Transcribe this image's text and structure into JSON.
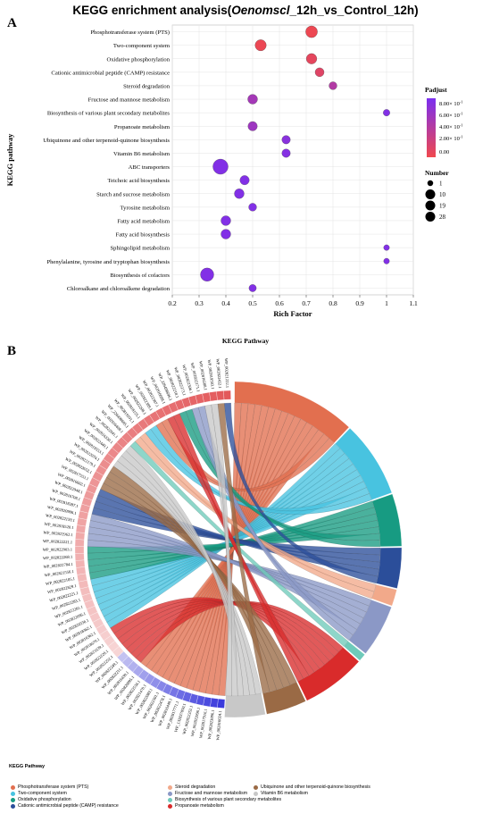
{
  "panel_a": {
    "letter": "A",
    "title_prefix": "KEGG enrichment analysis(",
    "title_italic": "Oenomscl",
    "title_suffix": "_12h_vs_Control_12h)"
  },
  "panel_b": {
    "letter": "B",
    "title": "KEGG Pathway"
  },
  "colors": {
    "padjust_low": "#f0484e",
    "padjust_high": "#7b2ff0"
  },
  "chart_data": [
    {
      "type": "scatter",
      "title": "KEGG enrichment analysis(Oenomscl_12h_vs_Control_12h)",
      "xlabel": "Rich Factor",
      "ylabel": "KEGG pathway",
      "xlim": [
        0.2,
        1.1
      ],
      "x_ticks": [
        "0.2",
        "0.3",
        "0.4",
        "0.5",
        "0.6",
        "0.7",
        "0.8",
        "0.9",
        "1",
        "1.1"
      ],
      "grid": true,
      "legend_placement": "right",
      "size_legend_title": "Number",
      "size_legend": [
        1,
        10,
        19,
        28
      ],
      "color_legend_title": "Padjust",
      "color_legend_ticks": [
        "8.00e-01",
        "6.00e-01",
        "4.00e-01",
        "2.00e-01",
        "0.00"
      ],
      "color_ticks_mantissa": [
        "8.00× 10",
        "6.00× 10",
        "4.00× 10",
        "2.00× 10"
      ],
      "color_ticks_exp": "-1",
      "color_tick_zero": "0.00",
      "pathways": [
        {
          "name": "Phosphotransferase system (PTS)",
          "x": 0.72,
          "number": 14,
          "padjust": 0.02
        },
        {
          "name": "Two-component system",
          "x": 0.53,
          "number": 12,
          "padjust": 0.03
        },
        {
          "name": "Oxidative phosphorylation",
          "x": 0.72,
          "number": 10,
          "padjust": 0.08
        },
        {
          "name": "Cationic antimicrobial peptide (CAMP) resistance",
          "x": 0.75,
          "number": 6,
          "padjust": 0.12
        },
        {
          "name": "Steroid degradation",
          "x": 0.8,
          "number": 4,
          "padjust": 0.45
        },
        {
          "name": "Fructose and mannose metabolism",
          "x": 0.5,
          "number": 8,
          "padjust": 0.55
        },
        {
          "name": "Biosynthesis of various plant secondary metabolites",
          "x": 1.0,
          "number": 2,
          "padjust": 0.8
        },
        {
          "name": "Propanoate metabolism",
          "x": 0.5,
          "number": 7,
          "padjust": 0.6
        },
        {
          "name": "Ubiquinone and other terpenoid-quinone biosynthesis",
          "x": 0.625,
          "number": 5,
          "padjust": 0.75
        },
        {
          "name": "Vitamin B6 metabolism",
          "x": 0.625,
          "number": 5,
          "padjust": 0.78
        },
        {
          "name": "ABC transporters",
          "x": 0.38,
          "number": 28,
          "padjust": 0.8
        },
        {
          "name": "Teichoic acid biosynthesis",
          "x": 0.47,
          "number": 7,
          "padjust": 0.8
        },
        {
          "name": "Starch and sucrose metabolism",
          "x": 0.45,
          "number": 8,
          "padjust": 0.8
        },
        {
          "name": "Tyrosine metabolism",
          "x": 0.5,
          "number": 4,
          "padjust": 0.8
        },
        {
          "name": "Fatty acid metabolism",
          "x": 0.4,
          "number": 8,
          "padjust": 0.8
        },
        {
          "name": "Fatty acid biosynthesis",
          "x": 0.4,
          "number": 8,
          "padjust": 0.8
        },
        {
          "name": "Sphingolipid metabolism",
          "x": 1.0,
          "number": 1,
          "padjust": 0.8
        },
        {
          "name": "Phenylalanine, tyrosine and tryptophan biosynthesis",
          "x": 1.0,
          "number": 1,
          "padjust": 0.8
        },
        {
          "name": "Biosynthesis of cofactors",
          "x": 0.33,
          "number": 20,
          "padjust": 0.8
        },
        {
          "name": "Chloroalkane and chloroalkene degradation",
          "x": 0.5,
          "number": 3,
          "padjust": 0.8
        }
      ]
    },
    {
      "type": "chord",
      "title": "KEGG Pathway",
      "legend_title": "KEGG Pathway",
      "log2fc_title": "Log2FC",
      "log2fc_ticks": [
        "-1",
        "-0.5",
        "0",
        "0.5",
        "1",
        "1.5"
      ],
      "pathways": [
        {
          "name": "Phosphotransferase system (PTS)",
          "color": "#e26f4f",
          "span": 0.21
        },
        {
          "name": "Two-component system",
          "color": "#48c3e0",
          "span": 0.13
        },
        {
          "name": "Oxidative phosphorylation",
          "color": "#179b82",
          "span": 0.09
        },
        {
          "name": "Cationic antimicrobial peptide (CAMP) resistance",
          "color": "#2b4e9a",
          "span": 0.07
        },
        {
          "name": "Steroid degradation",
          "color": "#f2a98a",
          "span": 0.03
        },
        {
          "name": "Fructose and mannose metabolism",
          "color": "#8b98c6",
          "span": 0.09
        },
        {
          "name": "Biosynthesis of various plant secondary metabolites",
          "color": "#6ecaba",
          "span": 0.015
        },
        {
          "name": "Propanoate metabolism",
          "color": "#d92b2b",
          "span": 0.11
        },
        {
          "name": "Ubiquinone and other terpenoid-quinone biosynthesis",
          "color": "#9a6a45",
          "span": 0.07
        },
        {
          "name": "Vitamin B6 metabolism",
          "color": "#c8c8c8",
          "span": 0.07
        }
      ],
      "genes": [
        "WP_002816024.1",
        "WP_002823096.1",
        "WP_002817916.1",
        "WP_002822996.1",
        "WP_002822352.1",
        "WP_132837050.1",
        "WP_002817771.1",
        "WP_002816448.1",
        "WP_002822478.1",
        "WP_002822501.1",
        "WP_002822089.1",
        "WP_002821470.1",
        "WP_002822534.1",
        "WP_002820895.1",
        "WP_002816430.1",
        "WP_002822211.1",
        "WP_002822249.1",
        "WP_002822252.1",
        "WP_002822226.1",
        "WP_002821639.1",
        "WP_002818670.1",
        "WP_002816362.1",
        "WP_002818362.1",
        "WP_002820556.1",
        "WP_002822096.1",
        "WP_002822281.1",
        "WP_002822283.1",
        "WP_002822221.1",
        "WP_002822829.1",
        "WP_002822105.1",
        "WP_002821556.1",
        "WP_002822784.1",
        "WP_002822268.1",
        "WP_002822903.1",
        "WP_002822221.1",
        "WP_002822962.1",
        "WP_002818520.1",
        "WP_002822159.1",
        "WP_002820906.1",
        "WP_002818387.1",
        "WP_002816708.1",
        "WP_002822948.1",
        "WP_002816602.1",
        "WP_002817553.1",
        "WP_002822652.1",
        "WP_002822179.1",
        "WP_002822074.1",
        "WP_002819553.1",
        "WP_002822449.1",
        "WP_002816330.1",
        "WP_002822041.1",
        "WP_002816408.1",
        "WP_226498695.1",
        "WP_002819101.1",
        "WP_002818155.1",
        "WP_002822208.1",
        "WP_002822389.1",
        "WP_002822387.1",
        "WP_002816698.1",
        "WP_226498696.1",
        "WP_002822218.1",
        "WP_002822373.1",
        "WP_002822306.1",
        "WP_002822171.1",
        "WP_002816588.1",
        "WP_002819583.1",
        "WP_002822452.1",
        "WP_002821222.1"
      ]
    }
  ]
}
